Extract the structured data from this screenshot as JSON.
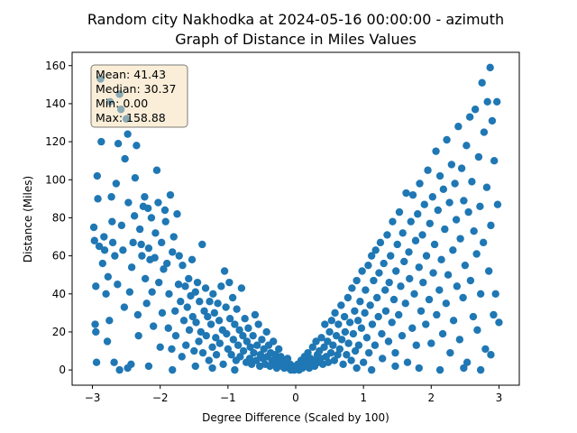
{
  "chart_data": {
    "type": "scatter",
    "title": "Random city Nakhodka at 2024-05-16 00:00:00  - azimuth",
    "subtitle": "Graph of Distance in Miles Values",
    "xlabel": "Degree Difference (Scaled by 100)",
    "ylabel": "Distance (Miles)",
    "xlim": [
      -3.3,
      3.3
    ],
    "ylim": [
      -8,
      167
    ],
    "xticks": [
      -3,
      -2,
      -1,
      0,
      1,
      2,
      3
    ],
    "yticks": [
      0,
      20,
      40,
      60,
      80,
      100,
      120,
      140,
      160
    ],
    "grid": false,
    "marker_color": "#1f77b4",
    "stats_box": {
      "mean": "Mean: 41.43",
      "median": "Median: 30.37",
      "min": "Min: 0.00",
      "max": "Max: 158.88",
      "placement": "top-left",
      "fill": "#f5deb3"
    },
    "points": [
      [
        -2.98,
        75
      ],
      [
        -2.97,
        68
      ],
      [
        -2.95,
        44
      ],
      [
        -2.96,
        24
      ],
      [
        -2.95,
        20
      ],
      [
        -2.93,
        102
      ],
      [
        -2.92,
        90
      ],
      [
        -2.9,
        65
      ],
      [
        -2.88,
        153
      ],
      [
        -2.87,
        120
      ],
      [
        -2.85,
        56
      ],
      [
        -2.83,
        70
      ],
      [
        -2.82,
        63
      ],
      [
        -2.8,
        40
      ],
      [
        -2.78,
        15
      ],
      [
        -2.77,
        49
      ],
      [
        -2.75,
        26
      ],
      [
        -2.74,
        141
      ],
      [
        -2.72,
        91
      ],
      [
        -2.71,
        78
      ],
      [
        -2.7,
        67
      ],
      [
        -2.68,
        4
      ],
      [
        -2.67,
        60
      ],
      [
        -2.65,
        98
      ],
      [
        -2.63,
        45
      ],
      [
        -2.62,
        119
      ],
      [
        -2.6,
        145
      ],
      [
        -2.58,
        137
      ],
      [
        -2.57,
        76
      ],
      [
        -2.55,
        63
      ],
      [
        -2.53,
        33
      ],
      [
        -2.52,
        111
      ],
      [
        -2.5,
        132
      ],
      [
        -2.48,
        124
      ],
      [
        -2.47,
        88
      ],
      [
        -2.45,
        41
      ],
      [
        -2.43,
        3
      ],
      [
        -2.42,
        54
      ],
      [
        -2.4,
        67
      ],
      [
        -2.38,
        81
      ],
      [
        -2.37,
        101
      ],
      [
        -2.35,
        118
      ],
      [
        -2.33,
        29
      ],
      [
        -2.32,
        18
      ],
      [
        -2.3,
        74
      ],
      [
        -2.28,
        66
      ],
      [
        -2.27,
        60
      ],
      [
        -2.25,
        86
      ],
      [
        -2.23,
        91
      ],
      [
        -2.22,
        48
      ],
      [
        -2.2,
        35
      ],
      [
        -2.18,
        85
      ],
      [
        -2.17,
        64
      ],
      [
        -2.15,
        58
      ],
      [
        -2.13,
        80
      ],
      [
        -2.12,
        41
      ],
      [
        -2.1,
        23
      ],
      [
        -2.08,
        59
      ],
      [
        -2.07,
        72
      ],
      [
        -2.05,
        105
      ],
      [
        -2.03,
        88
      ],
      [
        -2.02,
        46
      ],
      [
        -2.0,
        12
      ],
      [
        -1.98,
        67
      ],
      [
        -1.97,
        30
      ],
      [
        -1.95,
        53
      ],
      [
        -1.93,
        84
      ],
      [
        -1.92,
        78
      ],
      [
        -1.9,
        56
      ],
      [
        -1.88,
        22
      ],
      [
        -1.87,
        40
      ],
      [
        -1.85,
        92
      ],
      [
        -1.83,
        11
      ],
      [
        -1.82,
        62
      ],
      [
        -1.8,
        70
      ],
      [
        -1.78,
        31
      ],
      [
        -1.77,
        18
      ],
      [
        -1.75,
        82
      ],
      [
        -1.73,
        45
      ],
      [
        -1.72,
        60
      ],
      [
        -1.7,
        36
      ],
      [
        -1.68,
        7
      ],
      [
        -1.67,
        55
      ],
      [
        -1.65,
        26
      ],
      [
        -1.63,
        44
      ],
      [
        -1.62,
        13
      ],
      [
        -1.6,
        33
      ],
      [
        -1.58,
        48
      ],
      [
        -1.57,
        21
      ],
      [
        -1.55,
        39
      ],
      [
        -1.53,
        58
      ],
      [
        -1.52,
        28
      ],
      [
        -1.5,
        10
      ],
      [
        -1.48,
        41
      ],
      [
        -1.47,
        25
      ],
      [
        -1.45,
        46
      ],
      [
        -1.43,
        15
      ],
      [
        -1.42,
        36
      ],
      [
        -1.4,
        20
      ],
      [
        -1.38,
        66
      ],
      [
        -1.37,
        9
      ],
      [
        -1.35,
        31
      ],
      [
        -1.33,
        43
      ],
      [
        -1.32,
        18
      ],
      [
        -1.3,
        28
      ],
      [
        -1.28,
        5
      ],
      [
        -1.27,
        36
      ],
      [
        -1.25,
        24
      ],
      [
        -1.23,
        12
      ],
      [
        -1.22,
        40
      ],
      [
        -1.2,
        30
      ],
      [
        -1.18,
        17
      ],
      [
        -1.17,
        8
      ],
      [
        -1.15,
        35
      ],
      [
        -1.13,
        26
      ],
      [
        -1.12,
        14
      ],
      [
        -1.1,
        44
      ],
      [
        -1.08,
        21
      ],
      [
        -1.07,
        3
      ],
      [
        -1.05,
        52
      ],
      [
        -1.03,
        33
      ],
      [
        -1.02,
        19
      ],
      [
        -1.0,
        11
      ],
      [
        -0.98,
        46
      ],
      [
        -0.97,
        27
      ],
      [
        -0.95,
        8
      ],
      [
        -0.93,
        38
      ],
      [
        -0.92,
        16
      ],
      [
        -0.9,
        24
      ],
      [
        -0.88,
        5
      ],
      [
        -0.87,
        32
      ],
      [
        -0.85,
        13
      ],
      [
        -0.83,
        21
      ],
      [
        -0.82,
        7
      ],
      [
        -0.8,
        43
      ],
      [
        -0.78,
        18
      ],
      [
        -0.77,
        10
      ],
      [
        -0.75,
        27
      ],
      [
        -0.73,
        4
      ],
      [
        -0.72,
        15
      ],
      [
        -0.7,
        22
      ],
      [
        -0.68,
        6
      ],
      [
        -0.67,
        12
      ],
      [
        -0.65,
        3
      ],
      [
        -0.63,
        18
      ],
      [
        -0.62,
        9
      ],
      [
        -0.6,
        29
      ],
      [
        -0.58,
        5
      ],
      [
        -0.57,
        13
      ],
      [
        -0.55,
        24
      ],
      [
        -0.53,
        2
      ],
      [
        -0.52,
        8
      ],
      [
        -0.5,
        16
      ],
      [
        -0.48,
        6
      ],
      [
        -0.47,
        11
      ],
      [
        -0.45,
        3
      ],
      [
        -0.43,
        20
      ],
      [
        -0.42,
        7
      ],
      [
        -0.4,
        13
      ],
      [
        -0.38,
        2
      ],
      [
        -0.37,
        9
      ],
      [
        -0.35,
        5
      ],
      [
        -0.33,
        15
      ],
      [
        -0.32,
        4
      ],
      [
        -0.3,
        8
      ],
      [
        -0.28,
        1
      ],
      [
        -0.27,
        6
      ],
      [
        -0.25,
        11
      ],
      [
        -0.23,
        3
      ],
      [
        -0.22,
        7
      ],
      [
        -0.2,
        2
      ],
      [
        -0.18,
        5
      ],
      [
        -0.17,
        1
      ],
      [
        -0.15,
        4
      ],
      [
        -0.13,
        2
      ],
      [
        -0.12,
        6
      ],
      [
        -0.1,
        1
      ],
      [
        -0.08,
        3
      ],
      [
        -0.07,
        0
      ],
      [
        -0.05,
        2
      ],
      [
        -0.03,
        1
      ],
      [
        -0.02,
        0
      ],
      [
        0.02,
        1
      ],
      [
        0.03,
        3
      ],
      [
        0.05,
        0
      ],
      [
        0.07,
        2
      ],
      [
        0.08,
        5
      ],
      [
        0.1,
        1
      ],
      [
        0.12,
        3
      ],
      [
        0.13,
        7
      ],
      [
        0.15,
        2
      ],
      [
        0.17,
        4
      ],
      [
        0.18,
        9
      ],
      [
        0.2,
        1
      ],
      [
        0.22,
        6
      ],
      [
        0.23,
        3
      ],
      [
        0.25,
        12
      ],
      [
        0.27,
        5
      ],
      [
        0.28,
        2
      ],
      [
        0.3,
        15
      ],
      [
        0.32,
        8
      ],
      [
        0.33,
        4
      ],
      [
        0.35,
        10
      ],
      [
        0.37,
        6
      ],
      [
        0.38,
        17
      ],
      [
        0.4,
        3
      ],
      [
        0.42,
        12
      ],
      [
        0.43,
        24
      ],
      [
        0.45,
        7
      ],
      [
        0.47,
        15
      ],
      [
        0.48,
        4
      ],
      [
        0.5,
        20
      ],
      [
        0.52,
        9
      ],
      [
        0.53,
        26
      ],
      [
        0.55,
        13
      ],
      [
        0.57,
        5
      ],
      [
        0.58,
        30
      ],
      [
        0.6,
        18
      ],
      [
        0.62,
        8
      ],
      [
        0.63,
        24
      ],
      [
        0.65,
        11
      ],
      [
        0.67,
        34
      ],
      [
        0.68,
        16
      ],
      [
        0.7,
        3
      ],
      [
        0.72,
        28
      ],
      [
        0.73,
        20
      ],
      [
        0.75,
        8
      ],
      [
        0.77,
        38
      ],
      [
        0.78,
        14
      ],
      [
        0.8,
        25
      ],
      [
        0.82,
        5
      ],
      [
        0.83,
        43
      ],
      [
        0.85,
        19
      ],
      [
        0.87,
        31
      ],
      [
        0.88,
        10
      ],
      [
        0.9,
        47
      ],
      [
        0.92,
        26
      ],
      [
        0.93,
        13
      ],
      [
        0.95,
        36
      ],
      [
        0.97,
        22
      ],
      [
        0.98,
        52
      ],
      [
        1.0,
        4
      ],
      [
        1.02,
        30
      ],
      [
        1.03,
        42
      ],
      [
        1.05,
        17
      ],
      [
        1.07,
        55
      ],
      [
        1.08,
        9
      ],
      [
        1.1,
        34
      ],
      [
        1.12,
        60
      ],
      [
        1.13,
        24
      ],
      [
        1.15,
        47
      ],
      [
        1.17,
        13
      ],
      [
        1.18,
        63
      ],
      [
        1.2,
        38
      ],
      [
        1.22,
        28
      ],
      [
        1.23,
        51
      ],
      [
        1.25,
        67
      ],
      [
        1.27,
        19
      ],
      [
        1.28,
        6
      ],
      [
        1.3,
        56
      ],
      [
        1.32,
        42
      ],
      [
        1.33,
        31
      ],
      [
        1.35,
        71
      ],
      [
        1.37,
        15
      ],
      [
        1.38,
        46
      ],
      [
        1.4,
        60
      ],
      [
        1.42,
        25
      ],
      [
        1.43,
        78
      ],
      [
        1.45,
        37
      ],
      [
        1.47,
        9
      ],
      [
        1.48,
        52
      ],
      [
        1.5,
        66
      ],
      [
        1.52,
        29
      ],
      [
        1.53,
        83
      ],
      [
        1.55,
        44
      ],
      [
        1.57,
        18
      ],
      [
        1.58,
        72
      ],
      [
        1.6,
        57
      ],
      [
        1.62,
        35
      ],
      [
        1.63,
        93
      ],
      [
        1.65,
        4
      ],
      [
        1.67,
        62
      ],
      [
        1.68,
        48
      ],
      [
        1.7,
        78
      ],
      [
        1.72,
        22
      ],
      [
        1.73,
        92
      ],
      [
        1.75,
        40
      ],
      [
        1.77,
        68
      ],
      [
        1.78,
        13
      ],
      [
        1.8,
        82
      ],
      [
        1.82,
        54
      ],
      [
        1.83,
        98
      ],
      [
        1.85,
        31
      ],
      [
        1.87,
        71
      ],
      [
        1.88,
        46
      ],
      [
        1.9,
        87
      ],
      [
        1.92,
        24
      ],
      [
        1.93,
        60
      ],
      [
        1.95,
        105
      ],
      [
        1.97,
        37
      ],
      [
        1.98,
        77
      ],
      [
        2.0,
        14
      ],
      [
        2.02,
        91
      ],
      [
        2.03,
        51
      ],
      [
        2.05,
        66
      ],
      [
        2.07,
        115
      ],
      [
        2.08,
        29
      ],
      [
        2.1,
        84
      ],
      [
        2.12,
        42
      ],
      [
        2.13,
        102
      ],
      [
        2.15,
        58
      ],
      [
        2.17,
        19
      ],
      [
        2.18,
        95
      ],
      [
        2.2,
        74
      ],
      [
        2.22,
        35
      ],
      [
        2.23,
        121
      ],
      [
        2.25,
        50
      ],
      [
        2.27,
        88
      ],
      [
        2.28,
        9
      ],
      [
        2.3,
        108
      ],
      [
        2.32,
        63
      ],
      [
        2.33,
        26
      ],
      [
        2.35,
        98
      ],
      [
        2.37,
        79
      ],
      [
        2.38,
        44
      ],
      [
        2.4,
        128
      ],
      [
        2.42,
        16
      ],
      [
        2.43,
        69
      ],
      [
        2.45,
        106
      ],
      [
        2.47,
        38
      ],
      [
        2.48,
        89
      ],
      [
        2.5,
        55
      ],
      [
        2.52,
        118
      ],
      [
        2.53,
        4
      ],
      [
        2.55,
        83
      ],
      [
        2.57,
        133
      ],
      [
        2.58,
        47
      ],
      [
        2.6,
        99
      ],
      [
        2.62,
        28
      ],
      [
        2.63,
        73
      ],
      [
        2.65,
        137
      ],
      [
        2.67,
        61
      ],
      [
        2.68,
        21
      ],
      [
        2.7,
        112
      ],
      [
        2.72,
        86
      ],
      [
        2.73,
        40
      ],
      [
        2.75,
        151
      ],
      [
        2.77,
        67
      ],
      [
        2.78,
        125
      ],
      [
        2.8,
        11
      ],
      [
        2.82,
        96
      ],
      [
        2.83,
        141
      ],
      [
        2.85,
        52
      ],
      [
        2.87,
        159
      ],
      [
        2.88,
        76
      ],
      [
        2.9,
        131
      ],
      [
        2.92,
        29
      ],
      [
        2.93,
        110
      ],
      [
        2.95,
        40
      ],
      [
        2.97,
        141
      ],
      [
        2.98,
        87
      ],
      [
        3.0,
        25
      ],
      [
        -2.94,
        4
      ],
      [
        -2.6,
        0
      ],
      [
        -2.48,
        1
      ],
      [
        -2.17,
        2
      ],
      [
        -1.82,
        0
      ],
      [
        -1.48,
        2
      ],
      [
        -1.23,
        1
      ],
      [
        -0.9,
        0
      ],
      [
        0.9,
        1
      ],
      [
        1.12,
        0
      ],
      [
        1.47,
        2
      ],
      [
        1.82,
        1
      ],
      [
        2.13,
        0
      ],
      [
        2.48,
        1
      ],
      [
        2.73,
        0
      ],
      [
        2.88,
        8
      ]
    ]
  }
}
